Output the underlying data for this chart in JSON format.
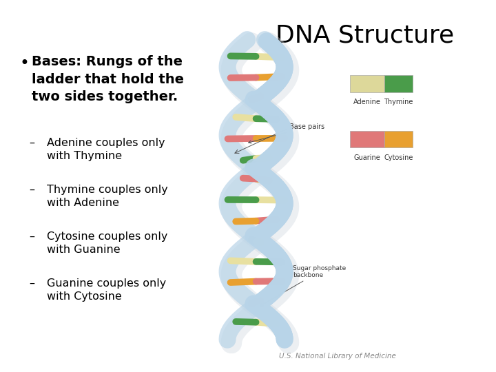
{
  "title": "DNA Structure",
  "title_fontsize": 26,
  "title_fontweight": "normal",
  "background_color": "#ffffff",
  "bullet_text": "Bases: Rungs of the\nladder that hold the\ntwo sides together.",
  "bullet_fontsize": 14,
  "sub_bullets": [
    "Adenine couples only\nwith Thymine",
    "Thymine couples only\nwith Adenine",
    "Cytosine couples only\nwith Guanine",
    "Guanine couples only\nwith Cytosine"
  ],
  "sub_bullet_fontsize": 11.5,
  "citation": "U.S. National Library of Medicine",
  "citation_fontsize": 7.5,
  "text_color": "#000000",
  "helix_color": "#b8d4e8",
  "helix_shadow_color": "#c8daea",
  "adenine_color": "#e8e0a0",
  "thymine_color": "#4a9c4a",
  "guanine_color": "#e07878",
  "cytosine_color": "#e8a030",
  "annotation_color": "#333333",
  "legend_adenine": "#ddd89a",
  "legend_thymine": "#4a9c4a",
  "legend_guanine": "#e07878",
  "legend_cytosine": "#e8a030"
}
